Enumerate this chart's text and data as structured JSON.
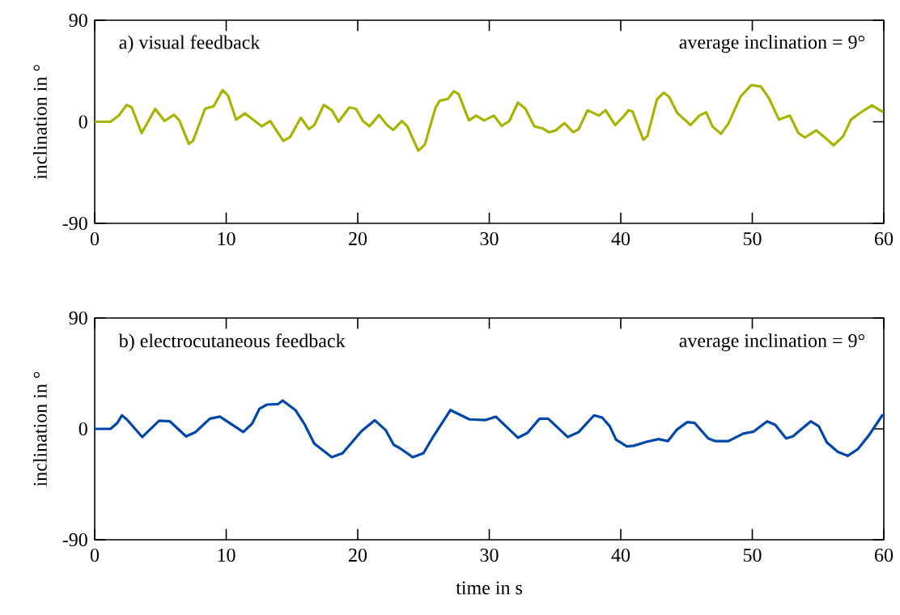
{
  "chart_data": [
    {
      "type": "line",
      "ylabel": "inclination in °",
      "annotations": [
        "a) visual feedback",
        "average inclination = 9°"
      ],
      "xlim": [
        0,
        60
      ],
      "ylim": [
        -90,
        90
      ],
      "xticks": [
        0,
        10,
        20,
        30,
        40,
        50,
        60
      ],
      "yticks": [
        -90,
        0,
        90
      ],
      "marker": "none",
      "x": [
        0,
        1.2,
        1.83,
        2.44,
        2.81,
        3.57,
        4.6,
        5.31,
        6.03,
        6.44,
        7.16,
        7.47,
        8.39,
        9.05,
        9.72,
        10.13,
        10.75,
        11.43,
        12.7,
        13.35,
        14.34,
        14.85,
        15.67,
        16.29,
        16.7,
        17.42,
        18.03,
        18.54,
        19.36,
        19.87,
        20.39,
        20.9,
        21.62,
        22.23,
        22.7,
        23.36,
        23.77,
        24.6,
        25.1,
        25.92,
        26.23,
        26.85,
        27.3,
        27.67,
        28.45,
        29.0,
        29.62,
        30.34,
        30.95,
        31.53,
        32.18,
        32.76,
        33.42,
        34.03,
        34.54,
        35.06,
        35.71,
        36.39,
        36.8,
        37.48,
        38.34,
        38.85,
        39.57,
        40.18,
        40.6,
        40.9,
        41.72,
        42.03,
        42.75,
        43.26,
        43.67,
        44.29,
        45.31,
        45.97,
        46.5,
        46.97,
        47.61,
        48.18,
        49.1,
        49.92,
        50.65,
        51.26,
        52.03,
        52.86,
        53.5,
        54.0,
        54.85,
        55.36,
        56.18,
        56.9,
        57.5,
        58.2,
        59.1,
        59.88
      ],
      "series": [
        {
          "color": "#a8b400",
          "values": [
            0,
            0,
            5.5,
            15,
            12.7,
            -10,
            11.5,
            0.7,
            6.2,
            1.2,
            -19.6,
            -17,
            11.5,
            13.8,
            28,
            23.4,
            1.9,
            7.4,
            -4,
            0.7,
            -17,
            -13.6,
            3.6,
            -6.5,
            -2.9,
            15,
            10.3,
            0,
            12.7,
            11.5,
            0.7,
            -4,
            6,
            -2.9,
            -7.2,
            0.7,
            -4,
            -25.6,
            -20.3,
            12.7,
            18.6,
            20.3,
            27,
            24.6,
            1.2,
            5.5,
            1.2,
            5.5,
            -3.6,
            0.7,
            17,
            11.5,
            -4,
            -5.7,
            -9.3,
            -7.6,
            -1.2,
            -9.3,
            -6.5,
            10.3,
            5.5,
            10.3,
            -2.9,
            4.3,
            10.3,
            8.9,
            -16,
            -12.4,
            19.8,
            25.8,
            22.2,
            7.9,
            -2.9,
            5.5,
            8.4,
            -4,
            -10.7,
            -1.7,
            22.2,
            32.5,
            31.3,
            21,
            1.9,
            5.5,
            -10,
            -14,
            -7.6,
            -12.4,
            -20.8,
            -13,
            1.9,
            7.9,
            14.6,
            9.1
          ]
        }
      ]
    },
    {
      "type": "line",
      "ylabel": "inclination in °",
      "xlabel": "time in s",
      "annotations": [
        "b) electrocutaneous feedback",
        "average inclination = 9°"
      ],
      "xlim": [
        0,
        60
      ],
      "ylim": [
        -90,
        90
      ],
      "xticks": [
        0,
        10,
        20,
        30,
        40,
        50,
        60
      ],
      "yticks": [
        -90,
        0,
        90
      ],
      "marker": "none",
      "x": [
        0,
        1.2,
        1.72,
        2.07,
        2.44,
        3.61,
        4.9,
        5.72,
        6.95,
        7.67,
        8.76,
        9.52,
        11.3,
        11.98,
        12.53,
        13.1,
        13.93,
        14.29,
        15.26,
        15.98,
        16.7,
        18.03,
        18.85,
        20.29,
        21.3,
        22.13,
        22.74,
        23.15,
        24.18,
        25.0,
        25.72,
        27.05,
        28.49,
        29.72,
        30.5,
        32.18,
        32.9,
        33.83,
        34.48,
        35.97,
        36.8,
        37.97,
        38.58,
        39.16,
        39.64,
        40.46,
        40.98,
        41.95,
        42.87,
        43.59,
        44.29,
        45.06,
        45.62,
        46.65,
        47.16,
        48.18,
        49.31,
        50.1,
        51.13,
        51.74,
        52.57,
        53.08,
        54.44,
        55.05,
        55.67,
        56.49,
        57.25,
        58.03,
        58.85,
        59.88
      ],
      "series": [
        {
          "color": "#0047ab",
          "values": [
            0,
            0,
            4.8,
            11,
            7.7,
            -6.6,
            6.6,
            6.1,
            -6.1,
            -2.6,
            8.3,
            9.9,
            -2.6,
            4.4,
            16.4,
            19.7,
            20.1,
            23,
            15.3,
            3.3,
            -12,
            -23,
            -19.7,
            -1.8,
            7,
            -1.1,
            -13,
            -15.3,
            -23,
            -19.7,
            -6.6,
            15.3,
            7.7,
            7.2,
            9.9,
            -7.2,
            -3.3,
            8.3,
            8.3,
            -6.6,
            -2.6,
            11,
            9.2,
            2.2,
            -8.8,
            -14.2,
            -13.7,
            -10.5,
            -8.3,
            -9.9,
            -0.4,
            5.5,
            4.8,
            -7.7,
            -9.9,
            -9.9,
            -3.9,
            -2.2,
            6.1,
            3.3,
            -7.7,
            -6.1,
            6.1,
            2.2,
            -11,
            -18.6,
            -21.9,
            -16.4,
            -5.5,
            11
          ]
        }
      ]
    }
  ]
}
